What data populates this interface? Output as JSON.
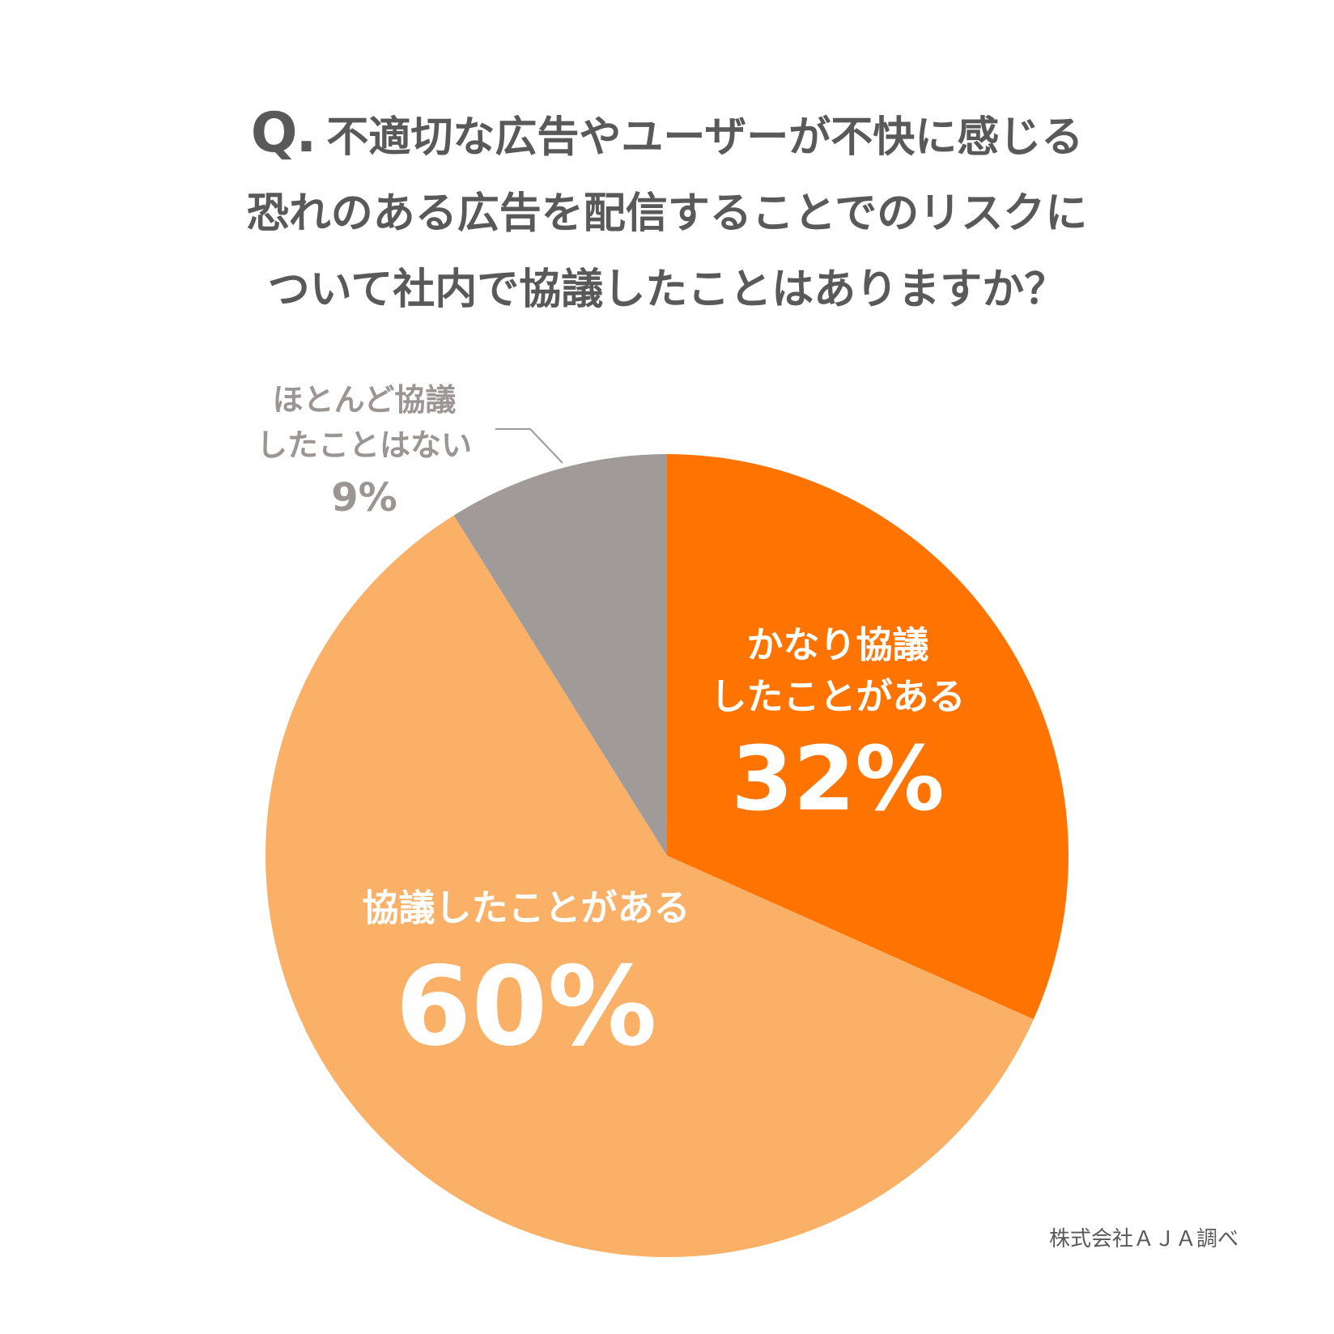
{
  "title": {
    "q_prefix": "Q.",
    "lines": [
      "不適切な広告やユーザーが不快に感じる",
      "恐れのある広告を配信することでのリスクに",
      "ついて社内で協議したことはありますか？"
    ]
  },
  "chart_data": {
    "type": "pie",
    "slices": [
      {
        "label_lines": [
          "かなり協議",
          "したことがある"
        ],
        "value": 32,
        "value_label": "32%",
        "color": "#ff7300"
      },
      {
        "label_lines": [
          "協議したことがある"
        ],
        "value": 60,
        "value_label": "60%",
        "color": "#fbb068"
      },
      {
        "label_lines": [
          "ほとんど協議",
          "したことはない"
        ],
        "value": 9,
        "value_label": "9%",
        "color": "#a09b98"
      }
    ]
  },
  "source": "株式会社ＡＪＡ調べ"
}
